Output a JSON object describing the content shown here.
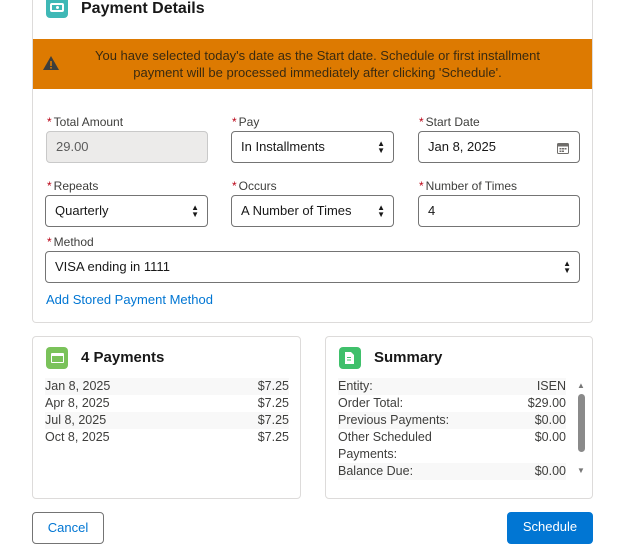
{
  "payment_details": {
    "title": "Payment Details",
    "icon": "money-icon",
    "banner": {
      "icon": "warning-icon",
      "message": "You have selected today's date as the Start date. Schedule or first installment payment will be processed immediately after clicking 'Schedule'.",
      "color": "#dd7a01"
    },
    "total_amount": {
      "label": "Total Amount",
      "value": "29.00"
    },
    "pay": {
      "label": "Pay",
      "value": "In Installments"
    },
    "start_date": {
      "label": "Start Date",
      "value": "Jan 8, 2025"
    },
    "repeats": {
      "label": "Repeats",
      "value": "Quarterly"
    },
    "occurs": {
      "label": "Occurs",
      "value": "A Number of Times"
    },
    "number_of_times": {
      "label": "Number of Times",
      "value": "4"
    },
    "method": {
      "label": "Method",
      "value": "VISA ending in 1111"
    },
    "add_method_link": "Add Stored Payment Method",
    "required_mark": "*"
  },
  "payments": {
    "title": "4 Payments",
    "icon": "credit-card-icon",
    "rows": [
      {
        "date": "Jan 8, 2025",
        "amount": "$7.25"
      },
      {
        "date": "Apr 8, 2025",
        "amount": "$7.25"
      },
      {
        "date": "Jul 8, 2025",
        "amount": "$7.25"
      },
      {
        "date": "Oct 8, 2025",
        "amount": "$7.25"
      }
    ]
  },
  "summary": {
    "title": "Summary",
    "icon": "document-edit-icon",
    "rows": [
      {
        "label": "Entity:",
        "value": "ISEN"
      },
      {
        "label": "Order Total:",
        "value": "$29.00"
      },
      {
        "label": "Previous Payments:",
        "value": "$0.00"
      },
      {
        "label": "Other Scheduled Payments:",
        "value": "$0.00"
      },
      {
        "label": "Balance Due:",
        "value": "$0.00"
      }
    ]
  },
  "buttons": {
    "cancel": "Cancel",
    "schedule": "Schedule",
    "accent": "#0176d3"
  }
}
